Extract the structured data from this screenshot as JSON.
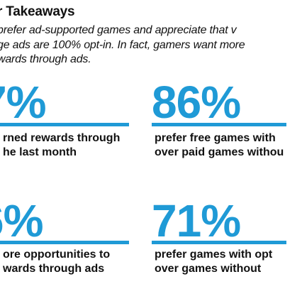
{
  "header": {
    "title": "r Takeaways",
    "intro_lines": [
      "prefer ad-supported games and appreciate that v",
      "ge ads are 100% opt-in. In fact, gamers want more",
      "wards through ads."
    ]
  },
  "stats": [
    {
      "value": "7%",
      "label_lines": [
        "rned rewards through",
        "he last month"
      ]
    },
    {
      "value": "86%",
      "label_lines": [
        "prefer free games with",
        "over paid games withou"
      ]
    },
    {
      "value": "6%",
      "label_lines": [
        "ore opportunities to",
        "wards through ads"
      ]
    },
    {
      "value": "71%",
      "label_lines": [
        "prefer games with opt",
        "over games without"
      ]
    }
  ],
  "colors": {
    "accent": "#1f9ad6",
    "text": "#111111",
    "background": "#ffffff"
  }
}
